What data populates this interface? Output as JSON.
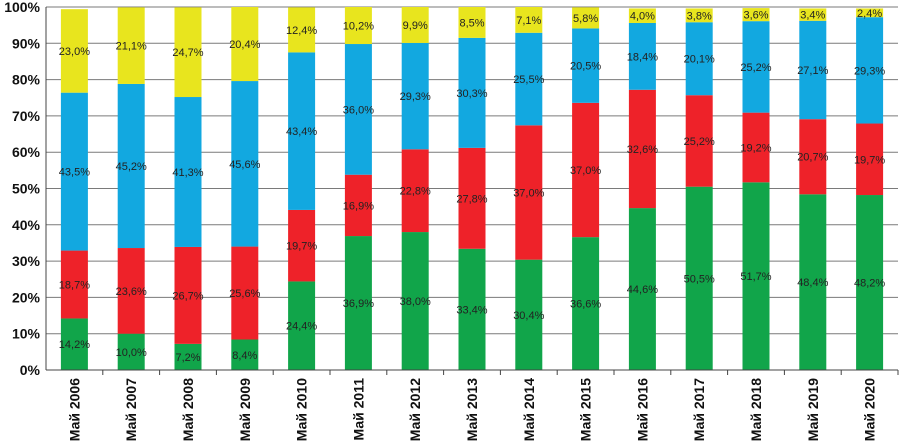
{
  "chart_data": {
    "type": "bar",
    "stacked": true,
    "title": "",
    "xlabel": "",
    "ylabel": "",
    "ylim": [
      0,
      100
    ],
    "y_ticks": [
      "0%",
      "10%",
      "20%",
      "30%",
      "40%",
      "50%",
      "60%",
      "70%",
      "80%",
      "90%",
      "100%"
    ],
    "grid": true,
    "categories": [
      "Май 2006",
      "Май 2007",
      "Май 2008",
      "Май 2009",
      "Май 2010",
      "Май 2011",
      "Май 2012",
      "Май 2013",
      "Май 2014",
      "Май 2015",
      "Май 2016",
      "Май 2017",
      "Май 2018",
      "Май 2019",
      "Май 2020"
    ],
    "series": [
      {
        "name": "green",
        "color": "#11A54A",
        "values": [
          14.2,
          10.0,
          7.2,
          8.4,
          24.4,
          36.9,
          38.0,
          33.4,
          30.4,
          36.6,
          44.6,
          50.5,
          51.7,
          48.4,
          48.2
        ],
        "labels": [
          "14,2%",
          "10,0%",
          "7,2%",
          "8,4%",
          "24,4%",
          "36,9%",
          "38,0%",
          "33,4%",
          "30,4%",
          "36,6%",
          "44,6%",
          "50,5%",
          "51,7%",
          "48,4%",
          "48,2%"
        ]
      },
      {
        "name": "red",
        "color": "#EE2229",
        "values": [
          18.7,
          23.6,
          26.7,
          25.6,
          19.7,
          16.9,
          22.8,
          27.8,
          37.0,
          37.0,
          32.6,
          25.2,
          19.2,
          20.7,
          19.7
        ],
        "labels": [
          "18,7%",
          "23,6%",
          "26,7%",
          "25,6%",
          "19,7%",
          "16,9%",
          "22,8%",
          "27,8%",
          "37,0%",
          "37,0%",
          "32,6%",
          "25,2%",
          "19,2%",
          "20,7%",
          "19,7%"
        ]
      },
      {
        "name": "blue",
        "color": "#12A8E0",
        "values": [
          43.5,
          45.2,
          41.3,
          45.6,
          43.4,
          36.0,
          29.3,
          30.3,
          25.5,
          20.5,
          18.4,
          20.1,
          25.2,
          27.1,
          29.3
        ],
        "labels": [
          "43,5%",
          "45,2%",
          "41,3%",
          "45,6%",
          "43,4%",
          "36,0%",
          "29,3%",
          "30,3%",
          "25,5%",
          "20,5%",
          "18,4%",
          "20,1%",
          "25,2%",
          "27,1%",
          "29,3%"
        ]
      },
      {
        "name": "yellow",
        "color": "#E8E51E",
        "values": [
          23.0,
          21.1,
          24.7,
          20.4,
          12.4,
          10.2,
          9.9,
          8.5,
          7.1,
          5.8,
          4.0,
          3.8,
          3.6,
          3.4,
          2.4
        ],
        "labels": [
          "23,0%",
          "21,1%",
          "24,7%",
          "20,4%",
          "12,4%",
          "10,2%",
          "9,9%",
          "8,5%",
          "7,1%",
          "5,8%",
          "4,0%",
          "3,8%",
          "3,6%",
          "3,4%",
          "2,4%"
        ]
      }
    ]
  }
}
